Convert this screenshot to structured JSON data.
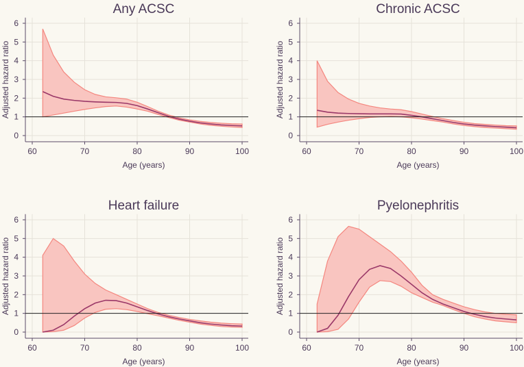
{
  "chart_data": [
    {
      "type": "area",
      "title": "Any ACSC",
      "xlabel": "Age (years)",
      "ylabel": "Adjusted hazard ratio",
      "xlim": [
        59,
        101
      ],
      "ylim": [
        -0.3,
        6.3
      ],
      "xticks": [
        60,
        70,
        80,
        90,
        100
      ],
      "yticks": [
        0,
        1,
        2,
        3,
        4,
        5,
        6
      ],
      "reference_line": 1,
      "grid": true,
      "x": [
        62,
        64,
        66,
        68,
        70,
        72,
        74,
        76,
        78,
        80,
        82,
        84,
        86,
        88,
        90,
        92,
        94,
        96,
        98,
        100
      ],
      "series": [
        {
          "name": "estimate",
          "values": [
            2.35,
            2.1,
            1.95,
            1.88,
            1.83,
            1.8,
            1.78,
            1.77,
            1.72,
            1.6,
            1.42,
            1.22,
            1.03,
            0.88,
            0.77,
            0.68,
            0.62,
            0.57,
            0.54,
            0.52
          ]
        },
        {
          "name": "upper",
          "values": [
            5.7,
            4.3,
            3.4,
            2.85,
            2.45,
            2.2,
            2.07,
            2.02,
            1.95,
            1.78,
            1.55,
            1.3,
            1.1,
            0.95,
            0.84,
            0.76,
            0.7,
            0.66,
            0.63,
            0.62
          ]
        },
        {
          "name": "lower",
          "values": [
            1.0,
            1.1,
            1.2,
            1.3,
            1.4,
            1.48,
            1.55,
            1.58,
            1.52,
            1.42,
            1.3,
            1.13,
            0.97,
            0.82,
            0.72,
            0.62,
            0.55,
            0.5,
            0.46,
            0.43
          ]
        }
      ]
    },
    {
      "type": "area",
      "title": "Chronic ACSC",
      "xlabel": "Age (years)",
      "ylabel": "Adjusted hazard ratio",
      "xlim": [
        59,
        101
      ],
      "ylim": [
        -0.3,
        6.3
      ],
      "xticks": [
        60,
        70,
        80,
        90,
        100
      ],
      "yticks": [
        0,
        1,
        2,
        3,
        4,
        5,
        6
      ],
      "reference_line": 1,
      "grid": true,
      "x": [
        62,
        64,
        66,
        68,
        70,
        72,
        74,
        76,
        78,
        80,
        82,
        84,
        86,
        88,
        90,
        92,
        94,
        96,
        98,
        100
      ],
      "series": [
        {
          "name": "estimate",
          "values": [
            1.35,
            1.25,
            1.2,
            1.18,
            1.17,
            1.16,
            1.16,
            1.16,
            1.15,
            1.08,
            1.0,
            0.9,
            0.8,
            0.7,
            0.62,
            0.56,
            0.52,
            0.48,
            0.45,
            0.42
          ]
        },
        {
          "name": "upper",
          "values": [
            4.0,
            2.9,
            2.3,
            1.95,
            1.72,
            1.58,
            1.48,
            1.42,
            1.38,
            1.28,
            1.15,
            1.02,
            0.9,
            0.8,
            0.71,
            0.64,
            0.6,
            0.56,
            0.53,
            0.52
          ]
        },
        {
          "name": "lower",
          "values": [
            0.45,
            0.6,
            0.72,
            0.82,
            0.9,
            0.97,
            1.0,
            1.02,
            1.0,
            0.95,
            0.88,
            0.8,
            0.72,
            0.62,
            0.54,
            0.48,
            0.43,
            0.4,
            0.37,
            0.34
          ]
        }
      ]
    },
    {
      "type": "area",
      "title": "Heart failure",
      "xlabel": "Age (years)",
      "ylabel": "Adjusted hazard ratio",
      "xlim": [
        59,
        101
      ],
      "ylim": [
        -0.3,
        6.3
      ],
      "xticks": [
        60,
        70,
        80,
        90,
        100
      ],
      "yticks": [
        0,
        1,
        2,
        3,
        4,
        5,
        6
      ],
      "reference_line": 1,
      "grid": true,
      "x": [
        62,
        64,
        66,
        68,
        70,
        72,
        74,
        76,
        78,
        80,
        82,
        84,
        86,
        88,
        90,
        92,
        94,
        96,
        98,
        100
      ],
      "series": [
        {
          "name": "estimate",
          "values": [
            0,
            0.1,
            0.4,
            0.85,
            1.25,
            1.55,
            1.7,
            1.68,
            1.55,
            1.35,
            1.15,
            0.97,
            0.82,
            0.7,
            0.6,
            0.5,
            0.43,
            0.38,
            0.34,
            0.32
          ]
        },
        {
          "name": "upper",
          "values": [
            4.1,
            5.0,
            4.6,
            3.8,
            3.1,
            2.6,
            2.25,
            2.0,
            1.75,
            1.5,
            1.25,
            1.05,
            0.9,
            0.78,
            0.68,
            0.6,
            0.53,
            0.48,
            0.45,
            0.43
          ]
        },
        {
          "name": "lower",
          "values": [
            0,
            0.02,
            0.1,
            0.35,
            0.75,
            1.05,
            1.22,
            1.25,
            1.2,
            1.1,
            0.98,
            0.87,
            0.75,
            0.63,
            0.53,
            0.43,
            0.36,
            0.3,
            0.27,
            0.25
          ]
        }
      ]
    },
    {
      "type": "area",
      "title": "Pyelonephritis",
      "xlabel": "Age (years)",
      "ylabel": "Adjusted hazard ratio",
      "xlim": [
        59,
        101
      ],
      "ylim": [
        -0.3,
        6.3
      ],
      "xticks": [
        60,
        70,
        80,
        90,
        100
      ],
      "yticks": [
        0,
        1,
        2,
        3,
        4,
        5,
        6
      ],
      "reference_line": 1,
      "grid": true,
      "x": [
        62,
        64,
        66,
        68,
        70,
        72,
        74,
        76,
        78,
        80,
        82,
        84,
        86,
        88,
        90,
        92,
        94,
        96,
        98,
        100
      ],
      "series": [
        {
          "name": "estimate",
          "values": [
            0,
            0.2,
            0.9,
            1.9,
            2.8,
            3.35,
            3.55,
            3.4,
            3.0,
            2.55,
            2.1,
            1.75,
            1.5,
            1.3,
            1.1,
            0.95,
            0.83,
            0.75,
            0.7,
            0.65
          ]
        },
        {
          "name": "upper",
          "values": [
            1.5,
            3.8,
            5.1,
            5.65,
            5.5,
            5.1,
            4.7,
            4.3,
            3.8,
            3.2,
            2.5,
            2.0,
            1.75,
            1.55,
            1.35,
            1.2,
            1.08,
            1.0,
            0.95,
            0.92
          ]
        },
        {
          "name": "lower",
          "values": [
            0,
            0.02,
            0.15,
            0.7,
            1.6,
            2.4,
            2.75,
            2.7,
            2.45,
            2.1,
            1.85,
            1.6,
            1.42,
            1.2,
            1.0,
            0.82,
            0.7,
            0.6,
            0.55,
            0.5
          ]
        }
      ]
    }
  ],
  "colors": {
    "band_fill": "#f9c5c0",
    "band_stroke": "#f4867e",
    "line": "#9a3868",
    "ref": "#222222",
    "grid": "#e5e2d9",
    "axis": "#5a4a68"
  }
}
